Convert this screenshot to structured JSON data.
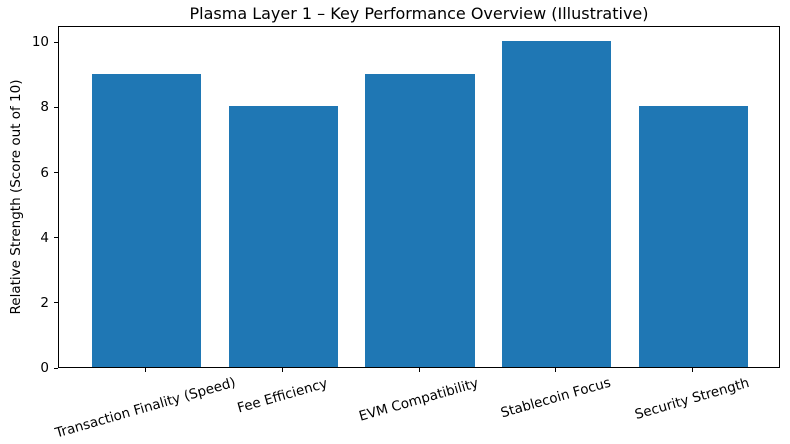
{
  "chart_data": {
    "type": "bar",
    "title": "Plasma Layer 1 – Key Performance Overview (Illustrative)",
    "xlabel": "",
    "ylabel": "Relative Strength (Score out of 10)",
    "categories": [
      "Transaction Finality (Speed)",
      "Fee Efficiency",
      "EVM Compatibility",
      "Stablecoin Focus",
      "Security Strength"
    ],
    "values": [
      9,
      8,
      9,
      10,
      8
    ],
    "yticks": [
      0,
      2,
      4,
      6,
      8,
      10
    ],
    "ylim": [
      0,
      10.5
    ],
    "bar_color": "#1f77b4",
    "grid": false,
    "legend": false,
    "xtick_rotation_deg": 16
  }
}
